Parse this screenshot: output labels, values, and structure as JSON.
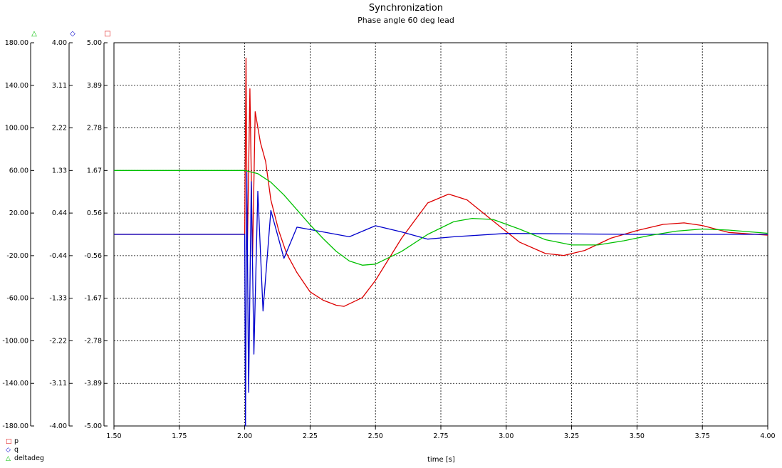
{
  "chart_data": {
    "type": "line",
    "title": "Synchronization",
    "subtitle": "Phase angle 60 deg lead",
    "xlabel": "time [s]",
    "xlim": [
      1.5,
      4.0
    ],
    "x_ticks": [
      "1.50",
      "1.75",
      "2.00",
      "2.25",
      "2.50",
      "2.75",
      "3.00",
      "3.25",
      "3.50",
      "3.75",
      "4.00"
    ],
    "grid": true,
    "legend_position": "bottom-left",
    "axes": [
      {
        "series": "deltadeg",
        "marker": "triangle",
        "color": "#00c000",
        "ylim": [
          -180,
          180
        ],
        "ticks": [
          "180.00",
          "140.00",
          "100.00",
          "60.00",
          "20.00",
          "-20.00",
          "-60.00",
          "-100.00",
          "-140.00",
          "-180.00"
        ]
      },
      {
        "series": "q",
        "marker": "diamond",
        "color": "#0000cc",
        "ylim": [
          -4,
          4
        ],
        "ticks": [
          "4.00",
          "3.11",
          "2.22",
          "1.33",
          "0.44",
          "-0.44",
          "-1.33",
          "-2.22",
          "-3.11",
          "-4.00"
        ]
      },
      {
        "series": "p",
        "marker": "square",
        "color": "#dd0000",
        "ylim": [
          -5,
          5
        ],
        "ticks": [
          "5.00",
          "3.89",
          "2.78",
          "1.67",
          "0.56",
          "-0.56",
          "-1.67",
          "-2.78",
          "-3.89",
          "-5.00"
        ]
      }
    ],
    "series": [
      {
        "name": "p",
        "color": "#dd0000",
        "axis": 2,
        "x": [
          1.5,
          2.0,
          2.005,
          2.01,
          2.02,
          2.03,
          2.04,
          2.06,
          2.08,
          2.1,
          2.13,
          2.16,
          2.2,
          2.25,
          2.3,
          2.35,
          2.38,
          2.45,
          2.5,
          2.6,
          2.7,
          2.78,
          2.85,
          2.95,
          3.05,
          3.15,
          3.22,
          3.3,
          3.4,
          3.5,
          3.6,
          3.68,
          3.75,
          3.85,
          4.0
        ],
        "y": [
          0,
          0,
          4.6,
          -0.4,
          3.8,
          -0.6,
          3.2,
          2.4,
          1.9,
          0.9,
          0.1,
          -0.5,
          -1.0,
          -1.5,
          -1.72,
          -1.85,
          -1.88,
          -1.65,
          -1.2,
          -0.1,
          0.82,
          1.05,
          0.9,
          0.35,
          -0.2,
          -0.5,
          -0.55,
          -0.42,
          -0.1,
          0.1,
          0.26,
          0.3,
          0.23,
          0.05,
          -0.02
        ]
      },
      {
        "name": "q",
        "color": "#0000cc",
        "axis": 1,
        "x": [
          1.5,
          2.0,
          2.003,
          2.008,
          2.015,
          2.025,
          2.035,
          2.05,
          2.07,
          2.1,
          2.15,
          2.2,
          2.3,
          2.4,
          2.5,
          2.6,
          2.7,
          2.8,
          3.0,
          3.5,
          4.0
        ],
        "y": [
          0,
          0,
          -4.0,
          1.3,
          -3.3,
          1.1,
          -2.5,
          0.9,
          -1.6,
          0.5,
          -0.5,
          0.15,
          0.05,
          -0.05,
          0.18,
          0.05,
          -0.1,
          -0.05,
          0.02,
          0,
          0
        ]
      },
      {
        "name": "deltadeg",
        "color": "#00c000",
        "axis": 0,
        "x": [
          1.5,
          2.0,
          2.05,
          2.1,
          2.15,
          2.2,
          2.25,
          2.3,
          2.35,
          2.4,
          2.45,
          2.5,
          2.6,
          2.7,
          2.8,
          2.87,
          2.95,
          3.05,
          3.15,
          3.25,
          3.35,
          3.45,
          3.55,
          3.65,
          3.75,
          3.85,
          3.95,
          4.0
        ],
        "y": [
          60,
          60,
          57,
          49,
          37,
          23,
          9,
          -4,
          -16,
          -25,
          -29,
          -28,
          -16,
          0,
          12,
          15,
          14,
          5,
          -5,
          -10,
          -10,
          -6,
          -1,
          3,
          5,
          4,
          2,
          1
        ]
      }
    ]
  },
  "legend": {
    "items": [
      {
        "label": "p",
        "color": "#dd0000",
        "marker": "□"
      },
      {
        "label": "q",
        "color": "#0000cc",
        "marker": "◇"
      },
      {
        "label": "deltadeg",
        "color": "#00c000",
        "marker": "△"
      }
    ]
  },
  "axis_markers": [
    {
      "symbol": "△",
      "color": "#00c000"
    },
    {
      "symbol": "◇",
      "color": "#0000cc"
    },
    {
      "symbol": "□",
      "color": "#dd0000"
    }
  ]
}
